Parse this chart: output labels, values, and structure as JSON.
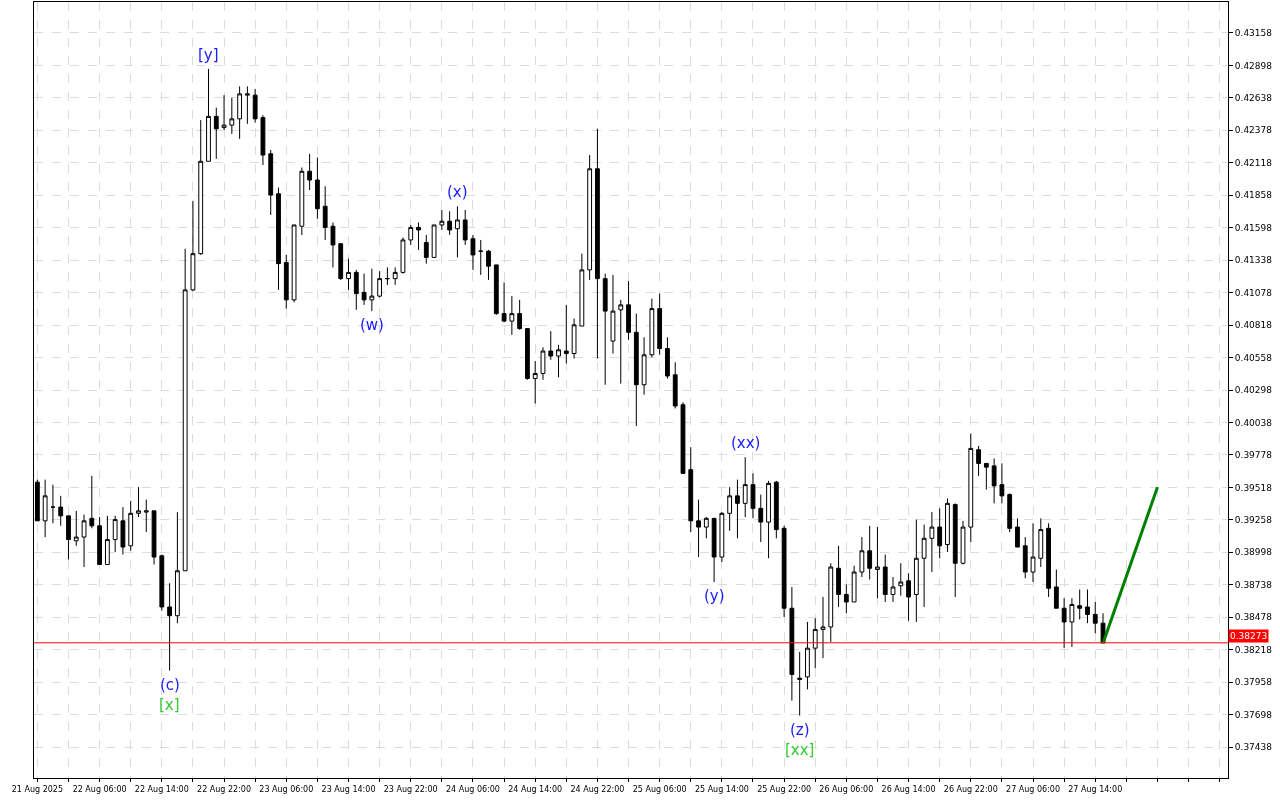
{
  "chart_data": {
    "type": "candlestick",
    "x": [
      "2025-08-21T22:00",
      "2025-08-21T23:00",
      "2025-08-22T00:00",
      "2025-08-22T01:00",
      "2025-08-22T02:00",
      "2025-08-22T03:00",
      "2025-08-22T04:00",
      "2025-08-22T05:00",
      "2025-08-22T06:00",
      "2025-08-22T07:00",
      "2025-08-22T08:00",
      "2025-08-22T09:00",
      "2025-08-22T10:00",
      "2025-08-22T11:00",
      "2025-08-22T12:00",
      "2025-08-22T13:00",
      "2025-08-22T14:00",
      "2025-08-22T15:00",
      "2025-08-22T16:00",
      "2025-08-22T17:00",
      "2025-08-22T18:00",
      "2025-08-22T19:00",
      "2025-08-22T20:00",
      "2025-08-22T21:00",
      "2025-08-22T22:00",
      "2025-08-22T23:00",
      "2025-08-23T00:00",
      "2025-08-23T01:00",
      "2025-08-23T02:00",
      "2025-08-23T03:00",
      "2025-08-23T04:00",
      "2025-08-23T05:00",
      "2025-08-23T06:00",
      "2025-08-23T07:00",
      "2025-08-23T08:00",
      "2025-08-23T09:00",
      "2025-08-23T10:00",
      "2025-08-23T11:00",
      "2025-08-23T12:00",
      "2025-08-23T13:00",
      "2025-08-23T14:00",
      "2025-08-23T15:00",
      "2025-08-23T16:00",
      "2025-08-23T17:00",
      "2025-08-23T18:00",
      "2025-08-23T19:00",
      "2025-08-23T20:00",
      "2025-08-23T21:00",
      "2025-08-23T22:00",
      "2025-08-23T23:00",
      "2025-08-24T00:00",
      "2025-08-24T01:00",
      "2025-08-24T02:00",
      "2025-08-24T03:00",
      "2025-08-24T04:00",
      "2025-08-24T05:00",
      "2025-08-24T06:00",
      "2025-08-24T07:00",
      "2025-08-24T08:00",
      "2025-08-24T09:00",
      "2025-08-24T10:00",
      "2025-08-24T11:00",
      "2025-08-24T12:00",
      "2025-08-24T13:00",
      "2025-08-24T14:00",
      "2025-08-24T15:00",
      "2025-08-24T16:00",
      "2025-08-24T17:00",
      "2025-08-24T18:00",
      "2025-08-24T19:00",
      "2025-08-24T20:00",
      "2025-08-24T21:00",
      "2025-08-24T22:00",
      "2025-08-24T23:00",
      "2025-08-25T00:00",
      "2025-08-25T01:00",
      "2025-08-25T02:00",
      "2025-08-25T03:00",
      "2025-08-25T04:00",
      "2025-08-25T05:00",
      "2025-08-25T06:00",
      "2025-08-25T07:00",
      "2025-08-25T08:00",
      "2025-08-25T09:00",
      "2025-08-25T10:00",
      "2025-08-25T11:00",
      "2025-08-25T12:00",
      "2025-08-25T13:00",
      "2025-08-25T14:00",
      "2025-08-25T15:00",
      "2025-08-25T16:00",
      "2025-08-25T17:00",
      "2025-08-25T18:00",
      "2025-08-25T19:00",
      "2025-08-25T20:00",
      "2025-08-25T21:00",
      "2025-08-25T22:00",
      "2025-08-25T23:00",
      "2025-08-26T00:00",
      "2025-08-26T01:00",
      "2025-08-26T02:00",
      "2025-08-26T03:00",
      "2025-08-26T04:00",
      "2025-08-26T05:00",
      "2025-08-26T06:00",
      "2025-08-26T07:00",
      "2025-08-26T08:00",
      "2025-08-26T09:00",
      "2025-08-26T10:00",
      "2025-08-26T11:00",
      "2025-08-26T12:00",
      "2025-08-26T13:00",
      "2025-08-26T14:00",
      "2025-08-26T15:00",
      "2025-08-26T16:00",
      "2025-08-26T17:00",
      "2025-08-26T18:00",
      "2025-08-26T19:00",
      "2025-08-26T20:00",
      "2025-08-26T21:00",
      "2025-08-26T22:00",
      "2025-08-26T23:00",
      "2025-08-27T00:00",
      "2025-08-27T01:00",
      "2025-08-27T02:00",
      "2025-08-27T03:00",
      "2025-08-27T04:00",
      "2025-08-27T05:00",
      "2025-08-27T06:00",
      "2025-08-27T07:00",
      "2025-08-27T08:00",
      "2025-08-27T09:00",
      "2025-08-27T10:00",
      "2025-08-27T11:00",
      "2025-08-27T12:00",
      "2025-08-27T13:00",
      "2025-08-27T14:00",
      "2025-08-27T15:00"
    ],
    "ohlc": [
      [
        0.3956,
        0.3958,
        0.3925,
        0.3925
      ],
      [
        0.3925,
        0.3958,
        0.3912,
        0.3945
      ],
      [
        0.3936,
        0.3954,
        0.3923,
        0.3936
      ],
      [
        0.3936,
        0.3945,
        0.3921,
        0.3929
      ],
      [
        0.3929,
        0.3929,
        0.3894,
        0.391
      ],
      [
        0.3909,
        0.3933,
        0.3905,
        0.3912
      ],
      [
        0.3912,
        0.393,
        0.3888,
        0.3925
      ],
      [
        0.3927,
        0.3961,
        0.3919,
        0.3921
      ],
      [
        0.3921,
        0.3928,
        0.389,
        0.389
      ],
      [
        0.389,
        0.3929,
        0.389,
        0.391
      ],
      [
        0.391,
        0.3929,
        0.39,
        0.3926
      ],
      [
        0.3925,
        0.3936,
        0.3898,
        0.3904
      ],
      [
        0.3905,
        0.3941,
        0.3901,
        0.3931
      ],
      [
        0.3931,
        0.3952,
        0.3928,
        0.3933
      ],
      [
        0.3932,
        0.3942,
        0.3916,
        0.3933
      ],
      [
        0.3933,
        0.3933,
        0.389,
        0.3896
      ],
      [
        0.3897,
        0.3898,
        0.3853,
        0.3856
      ],
      [
        0.3856,
        0.3875,
        0.3805,
        0.3849
      ],
      [
        0.3849,
        0.3932,
        0.3843,
        0.3885
      ],
      [
        0.3885,
        0.4143,
        0.3885,
        0.411
      ],
      [
        0.411,
        0.4181,
        0.4109,
        0.4139
      ],
      [
        0.4139,
        0.4246,
        0.4138,
        0.4213
      ],
      [
        0.4213,
        0.4287,
        0.4213,
        0.4249
      ],
      [
        0.4249,
        0.4256,
        0.4215,
        0.4239
      ],
      [
        0.424,
        0.4266,
        0.4238,
        0.4242
      ],
      [
        0.4242,
        0.4264,
        0.4235,
        0.4247
      ],
      [
        0.4247,
        0.4273,
        0.4231,
        0.4267
      ],
      [
        0.4266,
        0.4273,
        0.4243,
        0.4267
      ],
      [
        0.4266,
        0.4271,
        0.4244,
        0.4247
      ],
      [
        0.4248,
        0.425,
        0.421,
        0.4218
      ],
      [
        0.4219,
        0.4222,
        0.417,
        0.4186
      ],
      [
        0.4187,
        0.4192,
        0.411,
        0.4131
      ],
      [
        0.4132,
        0.4138,
        0.4095,
        0.4102
      ],
      [
        0.4102,
        0.4162,
        0.41,
        0.4162
      ],
      [
        0.4161,
        0.4208,
        0.4154,
        0.4205
      ],
      [
        0.4205,
        0.4219,
        0.419,
        0.4198
      ],
      [
        0.4198,
        0.4216,
        0.4167,
        0.4175
      ],
      [
        0.4177,
        0.4193,
        0.415,
        0.416
      ],
      [
        0.4161,
        0.4164,
        0.4128,
        0.4146
      ],
      [
        0.4147,
        0.4147,
        0.4118,
        0.4119
      ],
      [
        0.4119,
        0.4135,
        0.411,
        0.4124
      ],
      [
        0.4124,
        0.4126,
        0.4094,
        0.4107
      ],
      [
        0.4108,
        0.4123,
        0.4098,
        0.4102
      ],
      [
        0.4102,
        0.4127,
        0.4093,
        0.4105
      ],
      [
        0.4105,
        0.4125,
        0.4104,
        0.4119
      ],
      [
        0.4119,
        0.4128,
        0.4114,
        0.4119
      ],
      [
        0.4119,
        0.4128,
        0.4114,
        0.4124
      ],
      [
        0.4124,
        0.4152,
        0.4123,
        0.415
      ],
      [
        0.415,
        0.4162,
        0.4146,
        0.416
      ],
      [
        0.416,
        0.4164,
        0.4142,
        0.4158
      ],
      [
        0.4148,
        0.4154,
        0.4131,
        0.4136
      ],
      [
        0.4136,
        0.4162,
        0.4136,
        0.4162
      ],
      [
        0.4162,
        0.4174,
        0.4158,
        0.4165
      ],
      [
        0.4165,
        0.4173,
        0.4154,
        0.4158
      ],
      [
        0.4159,
        0.4177,
        0.4136,
        0.4166
      ],
      [
        0.4166,
        0.4174,
        0.4146,
        0.415
      ],
      [
        0.4151,
        0.4154,
        0.4126,
        0.4138
      ],
      [
        0.4141,
        0.415,
        0.4122,
        0.4141
      ],
      [
        0.4141,
        0.4142,
        0.4118,
        0.4129
      ],
      [
        0.413,
        0.413,
        0.409,
        0.4091
      ],
      [
        0.4091,
        0.4116,
        0.4084,
        0.4085
      ],
      [
        0.4085,
        0.4105,
        0.4074,
        0.4091
      ],
      [
        0.4091,
        0.4102,
        0.4078,
        0.4079
      ],
      [
        0.4079,
        0.4079,
        0.4038,
        0.4039
      ],
      [
        0.4039,
        0.4053,
        0.4019,
        0.4043
      ],
      [
        0.4043,
        0.4064,
        0.4038,
        0.4061
      ],
      [
        0.4061,
        0.4077,
        0.4054,
        0.4057
      ],
      [
        0.4057,
        0.4066,
        0.404,
        0.4062
      ],
      [
        0.4061,
        0.4098,
        0.4051,
        0.4059
      ],
      [
        0.4059,
        0.4087,
        0.4055,
        0.4082
      ],
      [
        0.4081,
        0.4139,
        0.4081,
        0.4126
      ],
      [
        0.4126,
        0.4218,
        0.4118,
        0.4207
      ],
      [
        0.4207,
        0.4239,
        0.4055,
        0.4119
      ],
      [
        0.4119,
        0.4123,
        0.4034,
        0.4093
      ],
      [
        0.4069,
        0.4122,
        0.4059,
        0.4093
      ],
      [
        0.4094,
        0.4102,
        0.4035,
        0.4098
      ],
      [
        0.4098,
        0.4117,
        0.407,
        0.4076
      ],
      [
        0.4076,
        0.4091,
        0.4001,
        0.4034
      ],
      [
        0.4034,
        0.4072,
        0.4026,
        0.4058
      ],
      [
        0.4058,
        0.4103,
        0.4056,
        0.4095
      ],
      [
        0.4095,
        0.4107,
        0.4058,
        0.4063
      ],
      [
        0.4063,
        0.4072,
        0.4039,
        0.4041
      ],
      [
        0.4042,
        0.4052,
        0.4015,
        0.4017
      ],
      [
        0.4018,
        0.402,
        0.3963,
        0.3963
      ],
      [
        0.3966,
        0.3984,
        0.3916,
        0.3925
      ],
      [
        0.3925,
        0.3942,
        0.3896,
        0.392
      ],
      [
        0.392,
        0.3928,
        0.3911,
        0.3927
      ],
      [
        0.3927,
        0.3927,
        0.3876,
        0.3896
      ],
      [
        0.3896,
        0.3932,
        0.3892,
        0.3931
      ],
      [
        0.3931,
        0.3952,
        0.3917,
        0.3945
      ],
      [
        0.3945,
        0.3958,
        0.3911,
        0.3939
      ],
      [
        0.3939,
        0.3976,
        0.3928,
        0.3954
      ],
      [
        0.3954,
        0.3963,
        0.3927,
        0.3935
      ],
      [
        0.3935,
        0.3946,
        0.3908,
        0.3924
      ],
      [
        0.3924,
        0.3957,
        0.3895,
        0.3955
      ],
      [
        0.3956,
        0.3957,
        0.3911,
        0.3918
      ],
      [
        0.3919,
        0.3921,
        0.3848,
        0.3855
      ],
      [
        0.3855,
        0.3872,
        0.3781,
        0.3802
      ],
      [
        0.3799,
        0.382,
        0.3769,
        0.3798
      ],
      [
        0.38,
        0.3844,
        0.379,
        0.3823
      ],
      [
        0.3823,
        0.3847,
        0.3807,
        0.3838
      ],
      [
        0.3838,
        0.3864,
        0.3815,
        0.384
      ],
      [
        0.384,
        0.3891,
        0.3828,
        0.3888
      ],
      [
        0.3887,
        0.3905,
        0.3856,
        0.3866
      ],
      [
        0.3866,
        0.3874,
        0.3851,
        0.386
      ],
      [
        0.386,
        0.3889,
        0.386,
        0.3884
      ],
      [
        0.3884,
        0.3912,
        0.388,
        0.3901
      ],
      [
        0.3901,
        0.3921,
        0.3878,
        0.3887
      ],
      [
        0.3886,
        0.392,
        0.3863,
        0.3888
      ],
      [
        0.3888,
        0.3898,
        0.386,
        0.3866
      ],
      [
        0.3866,
        0.388,
        0.386,
        0.3872
      ],
      [
        0.3873,
        0.3891,
        0.3865,
        0.3876
      ],
      [
        0.3877,
        0.3883,
        0.3845,
        0.3864
      ],
      [
        0.3866,
        0.3926,
        0.3844,
        0.3895
      ],
      [
        0.3895,
        0.3922,
        0.3856,
        0.3911
      ],
      [
        0.3911,
        0.3932,
        0.3884,
        0.392
      ],
      [
        0.392,
        0.3935,
        0.3895,
        0.3905
      ],
      [
        0.3906,
        0.3943,
        0.39,
        0.3939
      ],
      [
        0.3938,
        0.3939,
        0.3864,
        0.3891
      ],
      [
        0.3891,
        0.3925,
        0.389,
        0.392
      ],
      [
        0.392,
        0.3995,
        0.3908,
        0.3983
      ],
      [
        0.3982,
        0.3985,
        0.3961,
        0.3971
      ],
      [
        0.3971,
        0.3971,
        0.395,
        0.3968
      ],
      [
        0.3969,
        0.3975,
        0.3939,
        0.3953
      ],
      [
        0.3954,
        0.3971,
        0.3939,
        0.3945
      ],
      [
        0.3946,
        0.3947,
        0.3916,
        0.3919
      ],
      [
        0.392,
        0.3927,
        0.3904,
        0.3904
      ],
      [
        0.3905,
        0.3912,
        0.3879,
        0.3884
      ],
      [
        0.3884,
        0.3923,
        0.3876,
        0.3896
      ],
      [
        0.3895,
        0.3927,
        0.3888,
        0.3918
      ],
      [
        0.3919,
        0.3923,
        0.3864,
        0.3871
      ],
      [
        0.3872,
        0.3886,
        0.3855,
        0.3855
      ],
      [
        0.3855,
        0.3863,
        0.3823,
        0.3844
      ],
      [
        0.3844,
        0.3863,
        0.3824,
        0.3858
      ],
      [
        0.3857,
        0.387,
        0.3846,
        0.3855
      ],
      [
        0.3856,
        0.387,
        0.3843,
        0.385
      ],
      [
        0.385,
        0.386,
        0.3835,
        0.3843
      ],
      [
        0.3843,
        0.3851,
        0.3827,
        0.38273
      ]
    ],
    "xlim": [
      "2025-08-21T21:34",
      "2025-08-28T07:04"
    ],
    "xticks": [
      {
        "value": "2025-08-21T22:00",
        "label": "21 Aug 2025"
      },
      {
        "value": "2025-08-22T02:00",
        "label": null
      },
      {
        "value": "2025-08-22T06:00",
        "label": "22 Aug 06:00"
      },
      {
        "value": "2025-08-22T10:00",
        "label": null
      },
      {
        "value": "2025-08-22T14:00",
        "label": "22 Aug 14:00"
      },
      {
        "value": "2025-08-22T18:00",
        "label": null
      },
      {
        "value": "2025-08-22T22:00",
        "label": "22 Aug 22:00"
      },
      {
        "value": "2025-08-23T02:00",
        "label": null
      },
      {
        "value": "2025-08-23T06:00",
        "label": "23 Aug 06:00"
      },
      {
        "value": "2025-08-23T10:00",
        "label": null
      },
      {
        "value": "2025-08-23T14:00",
        "label": "23 Aug 14:00"
      },
      {
        "value": "2025-08-23T18:00",
        "label": null
      },
      {
        "value": "2025-08-23T22:00",
        "label": "23 Aug 22:00"
      },
      {
        "value": "2025-08-24T02:00",
        "label": null
      },
      {
        "value": "2025-08-24T06:00",
        "label": "24 Aug 06:00"
      },
      {
        "value": "2025-08-24T10:00",
        "label": null
      },
      {
        "value": "2025-08-24T14:00",
        "label": "24 Aug 14:00"
      },
      {
        "value": "2025-08-24T18:00",
        "label": null
      },
      {
        "value": "2025-08-24T22:00",
        "label": "24 Aug 22:00"
      },
      {
        "value": "2025-08-25T02:00",
        "label": null
      },
      {
        "value": "2025-08-25T06:00",
        "label": "25 Aug 06:00"
      },
      {
        "value": "2025-08-25T10:00",
        "label": null
      },
      {
        "value": "2025-08-25T14:00",
        "label": "25 Aug 14:00"
      },
      {
        "value": "2025-08-25T18:00",
        "label": null
      },
      {
        "value": "2025-08-25T22:00",
        "label": "25 Aug 22:00"
      },
      {
        "value": "2025-08-26T02:00",
        "label": null
      },
      {
        "value": "2025-08-26T06:00",
        "label": "26 Aug 06:00"
      },
      {
        "value": "2025-08-26T10:00",
        "label": null
      },
      {
        "value": "2025-08-26T14:00",
        "label": "26 Aug 14:00"
      },
      {
        "value": "2025-08-26T18:00",
        "label": null
      },
      {
        "value": "2025-08-26T22:00",
        "label": "26 Aug 22:00"
      },
      {
        "value": "2025-08-27T02:00",
        "label": null
      },
      {
        "value": "2025-08-27T06:00",
        "label": "27 Aug 06:00"
      },
      {
        "value": "2025-08-27T10:00",
        "label": null
      },
      {
        "value": "2025-08-27T14:00",
        "label": "27 Aug 14:00"
      },
      {
        "value": "2025-08-27T18:00",
        "label": null
      },
      {
        "value": "2025-08-27T22:00",
        "label": null
      },
      {
        "value": "2025-08-28T02:00",
        "label": null
      },
      {
        "value": "2025-08-28T06:00",
        "label": null
      }
    ],
    "ylim": [
      0.3719,
      0.43406
    ],
    "yticks": [
      0.43158,
      0.42898,
      0.42638,
      0.42378,
      0.42118,
      0.41858,
      0.41598,
      0.41338,
      0.41078,
      0.40818,
      0.40558,
      0.40298,
      0.40038,
      0.39778,
      0.39518,
      0.39258,
      0.38998,
      0.38738,
      0.38478,
      0.38218,
      0.37958,
      0.37698,
      0.37438
    ],
    "grid": true,
    "ref_lines": [
      {
        "axis": "y",
        "value": 0.38273,
        "label": "0.38273",
        "color": "#ff0000"
      }
    ],
    "series": [
      {
        "type": "line",
        "x": [
          "2025-08-27T15:00",
          "2025-08-27T22:00"
        ],
        "values": [
          0.3827,
          0.3952
        ],
        "color": "#008000"
      }
    ],
    "annotations": [
      {
        "text": "(c)",
        "x": "2025-08-22T15:00",
        "y": 0.3805
      },
      {
        "text": "[x]",
        "x": "2025-08-22T15:00",
        "y": 0.3805
      },
      {
        "text": "[y]",
        "x": "2025-08-22T20:00",
        "y": 0.4287
      },
      {
        "text": "(w)",
        "x": "2025-08-23T17:00",
        "y": 0.4093
      },
      {
        "text": "(x)",
        "x": "2025-08-24T04:00",
        "y": 0.4177
      },
      {
        "text": "(y)",
        "x": "2025-08-25T13:00",
        "y": 0.3876
      },
      {
        "text": "(xx)",
        "x": "2025-08-25T17:00",
        "y": 0.3976
      },
      {
        "text": "(z)",
        "x": "2025-08-26T00:00",
        "y": 0.3769
      },
      {
        "text": "[xx]",
        "x": "2025-08-26T00:00",
        "y": 0.3769
      }
    ]
  }
}
